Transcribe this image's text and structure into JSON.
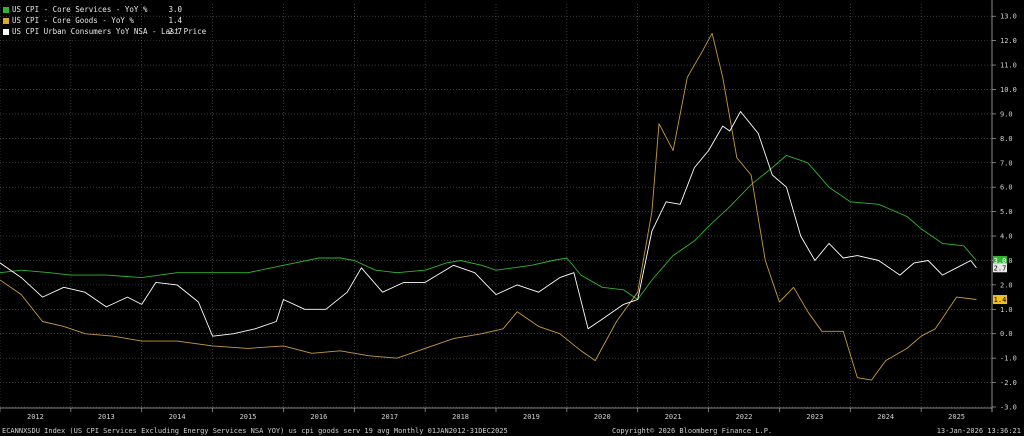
{
  "legend": [
    {
      "name": "US CPI - Core Services - YoY %",
      "value": "3.0",
      "color": "#2fb52f"
    },
    {
      "name": "US CPI - Core Goods - YoY %",
      "value": "1.4",
      "color": "#e0a820"
    },
    {
      "name": "US CPI Urban Consumers YoY NSA - Last Price",
      "value": "2.7",
      "color": "#ffffff"
    }
  ],
  "footer": {
    "left": "ECANNXSDU Index (US CPI Services Excluding Energy Services NSA YOY) us cpi goods serv 19 avg Monthly 01JAN2012-31DEC2025",
    "center": "Copyright© 2026 Bloomberg Finance L.P.",
    "right": "13-Jan-2026 13:36:21"
  },
  "chart_data": {
    "type": "line",
    "xlim": [
      2012.0,
      2026.0
    ],
    "ylim": [
      -3.0,
      13.5
    ],
    "x_ticks": [
      "2012",
      "2013",
      "2014",
      "2015",
      "2016",
      "2017",
      "2018",
      "2019",
      "2020",
      "2021",
      "2022",
      "2023",
      "2024",
      "2025"
    ],
    "y_ticks": [
      "-3.0",
      "-2.0",
      "-1.0",
      "0.0",
      "1.0",
      "2.0",
      "3.0",
      "4.0",
      "5.0",
      "6.0",
      "7.0",
      "8.0",
      "9.0",
      "10.0",
      "11.0",
      "12.0",
      "13.0"
    ],
    "grid": true,
    "legend_position": "top-left",
    "last_values": [
      {
        "series": "US CPI - Core Services - YoY %",
        "label": "3.0",
        "value": 3.0,
        "color": "#2fb52f",
        "text_color": "#ffffff"
      },
      {
        "series": "US CPI Urban Consumers YoY NSA - Last Price",
        "label": "2.7",
        "value": 2.7,
        "color": "#e8e8e8",
        "text_color": "#000000"
      },
      {
        "series": "US CPI - Core Goods - YoY %",
        "label": "1.4",
        "value": 1.4,
        "color": "#f0c020",
        "text_color": "#000000"
      }
    ],
    "series": [
      {
        "name": "US CPI - Core Services - YoY %",
        "color": "#2fb52f",
        "points": [
          [
            2012.0,
            2.5
          ],
          [
            2012.3,
            2.6
          ],
          [
            2012.7,
            2.5
          ],
          [
            2013.0,
            2.4
          ],
          [
            2013.5,
            2.4
          ],
          [
            2014.0,
            2.3
          ],
          [
            2014.5,
            2.5
          ],
          [
            2015.0,
            2.5
          ],
          [
            2015.5,
            2.5
          ],
          [
            2016.0,
            2.8
          ],
          [
            2016.5,
            3.1
          ],
          [
            2016.8,
            3.1
          ],
          [
            2017.0,
            3.0
          ],
          [
            2017.3,
            2.6
          ],
          [
            2017.6,
            2.5
          ],
          [
            2018.0,
            2.6
          ],
          [
            2018.3,
            2.9
          ],
          [
            2018.5,
            3.0
          ],
          [
            2018.8,
            2.8
          ],
          [
            2019.0,
            2.6
          ],
          [
            2019.5,
            2.8
          ],
          [
            2019.8,
            3.0
          ],
          [
            2020.0,
            3.1
          ],
          [
            2020.2,
            2.4
          ],
          [
            2020.5,
            1.9
          ],
          [
            2020.8,
            1.8
          ],
          [
            2021.0,
            1.4
          ],
          [
            2021.2,
            2.2
          ],
          [
            2021.5,
            3.2
          ],
          [
            2021.8,
            3.8
          ],
          [
            2022.0,
            4.4
          ],
          [
            2022.3,
            5.2
          ],
          [
            2022.6,
            6.1
          ],
          [
            2022.9,
            6.8
          ],
          [
            2023.1,
            7.3
          ],
          [
            2023.4,
            7.0
          ],
          [
            2023.7,
            6.0
          ],
          [
            2024.0,
            5.4
          ],
          [
            2024.4,
            5.3
          ],
          [
            2024.8,
            4.8
          ],
          [
            2025.0,
            4.3
          ],
          [
            2025.3,
            3.7
          ],
          [
            2025.6,
            3.6
          ],
          [
            2025.78,
            3.0
          ]
        ]
      },
      {
        "name": "US CPI - Core Goods - YoY %",
        "color": "#c89a40",
        "points": [
          [
            2012.0,
            2.2
          ],
          [
            2012.3,
            1.6
          ],
          [
            2012.6,
            0.5
          ],
          [
            2012.9,
            0.3
          ],
          [
            2013.2,
            0.0
          ],
          [
            2013.6,
            -0.1
          ],
          [
            2014.0,
            -0.3
          ],
          [
            2014.5,
            -0.3
          ],
          [
            2015.0,
            -0.5
          ],
          [
            2015.5,
            -0.6
          ],
          [
            2016.0,
            -0.5
          ],
          [
            2016.4,
            -0.8
          ],
          [
            2016.8,
            -0.7
          ],
          [
            2017.2,
            -0.9
          ],
          [
            2017.6,
            -1.0
          ],
          [
            2018.0,
            -0.6
          ],
          [
            2018.4,
            -0.2
          ],
          [
            2018.8,
            0.0
          ],
          [
            2019.1,
            0.2
          ],
          [
            2019.3,
            0.9
          ],
          [
            2019.6,
            0.3
          ],
          [
            2019.9,
            0.0
          ],
          [
            2020.2,
            -0.7
          ],
          [
            2020.4,
            -1.1
          ],
          [
            2020.7,
            0.5
          ],
          [
            2021.0,
            1.7
          ],
          [
            2021.2,
            5.0
          ],
          [
            2021.3,
            8.6
          ],
          [
            2021.5,
            7.5
          ],
          [
            2021.7,
            10.5
          ],
          [
            2021.9,
            11.5
          ],
          [
            2022.05,
            12.3
          ],
          [
            2022.2,
            10.5
          ],
          [
            2022.4,
            7.2
          ],
          [
            2022.6,
            6.5
          ],
          [
            2022.8,
            3.0
          ],
          [
            2023.0,
            1.3
          ],
          [
            2023.2,
            1.9
          ],
          [
            2023.4,
            0.9
          ],
          [
            2023.6,
            0.1
          ],
          [
            2023.9,
            0.1
          ],
          [
            2024.1,
            -1.8
          ],
          [
            2024.3,
            -1.9
          ],
          [
            2024.5,
            -1.1
          ],
          [
            2024.8,
            -0.6
          ],
          [
            2025.0,
            -0.1
          ],
          [
            2025.2,
            0.2
          ],
          [
            2025.5,
            1.5
          ],
          [
            2025.78,
            1.4
          ]
        ]
      },
      {
        "name": "US CPI Urban Consumers YoY NSA - Last Price",
        "color": "#ffffff",
        "points": [
          [
            2012.0,
            2.9
          ],
          [
            2012.3,
            2.3
          ],
          [
            2012.6,
            1.5
          ],
          [
            2012.9,
            1.9
          ],
          [
            2013.2,
            1.7
          ],
          [
            2013.5,
            1.1
          ],
          [
            2013.8,
            1.5
          ],
          [
            2014.0,
            1.2
          ],
          [
            2014.2,
            2.1
          ],
          [
            2014.5,
            2.0
          ],
          [
            2014.8,
            1.3
          ],
          [
            2015.0,
            -0.1
          ],
          [
            2015.3,
            0.0
          ],
          [
            2015.6,
            0.2
          ],
          [
            2015.9,
            0.5
          ],
          [
            2016.0,
            1.4
          ],
          [
            2016.3,
            1.0
          ],
          [
            2016.6,
            1.0
          ],
          [
            2016.9,
            1.7
          ],
          [
            2017.1,
            2.7
          ],
          [
            2017.4,
            1.7
          ],
          [
            2017.7,
            2.1
          ],
          [
            2018.0,
            2.1
          ],
          [
            2018.4,
            2.8
          ],
          [
            2018.7,
            2.5
          ],
          [
            2019.0,
            1.6
          ],
          [
            2019.3,
            2.0
          ],
          [
            2019.6,
            1.7
          ],
          [
            2019.9,
            2.3
          ],
          [
            2020.1,
            2.5
          ],
          [
            2020.3,
            0.2
          ],
          [
            2020.5,
            0.6
          ],
          [
            2020.8,
            1.2
          ],
          [
            2021.0,
            1.4
          ],
          [
            2021.2,
            4.2
          ],
          [
            2021.4,
            5.4
          ],
          [
            2021.6,
            5.3
          ],
          [
            2021.8,
            6.8
          ],
          [
            2022.0,
            7.5
          ],
          [
            2022.2,
            8.5
          ],
          [
            2022.3,
            8.3
          ],
          [
            2022.45,
            9.1
          ],
          [
            2022.7,
            8.2
          ],
          [
            2022.9,
            6.5
          ],
          [
            2023.1,
            6.0
          ],
          [
            2023.3,
            4.0
          ],
          [
            2023.5,
            3.0
          ],
          [
            2023.7,
            3.7
          ],
          [
            2023.9,
            3.1
          ],
          [
            2024.1,
            3.2
          ],
          [
            2024.4,
            3.0
          ],
          [
            2024.7,
            2.4
          ],
          [
            2024.9,
            2.9
          ],
          [
            2025.1,
            3.0
          ],
          [
            2025.3,
            2.4
          ],
          [
            2025.5,
            2.7
          ],
          [
            2025.7,
            3.0
          ],
          [
            2025.78,
            2.7
          ]
        ]
      }
    ]
  }
}
